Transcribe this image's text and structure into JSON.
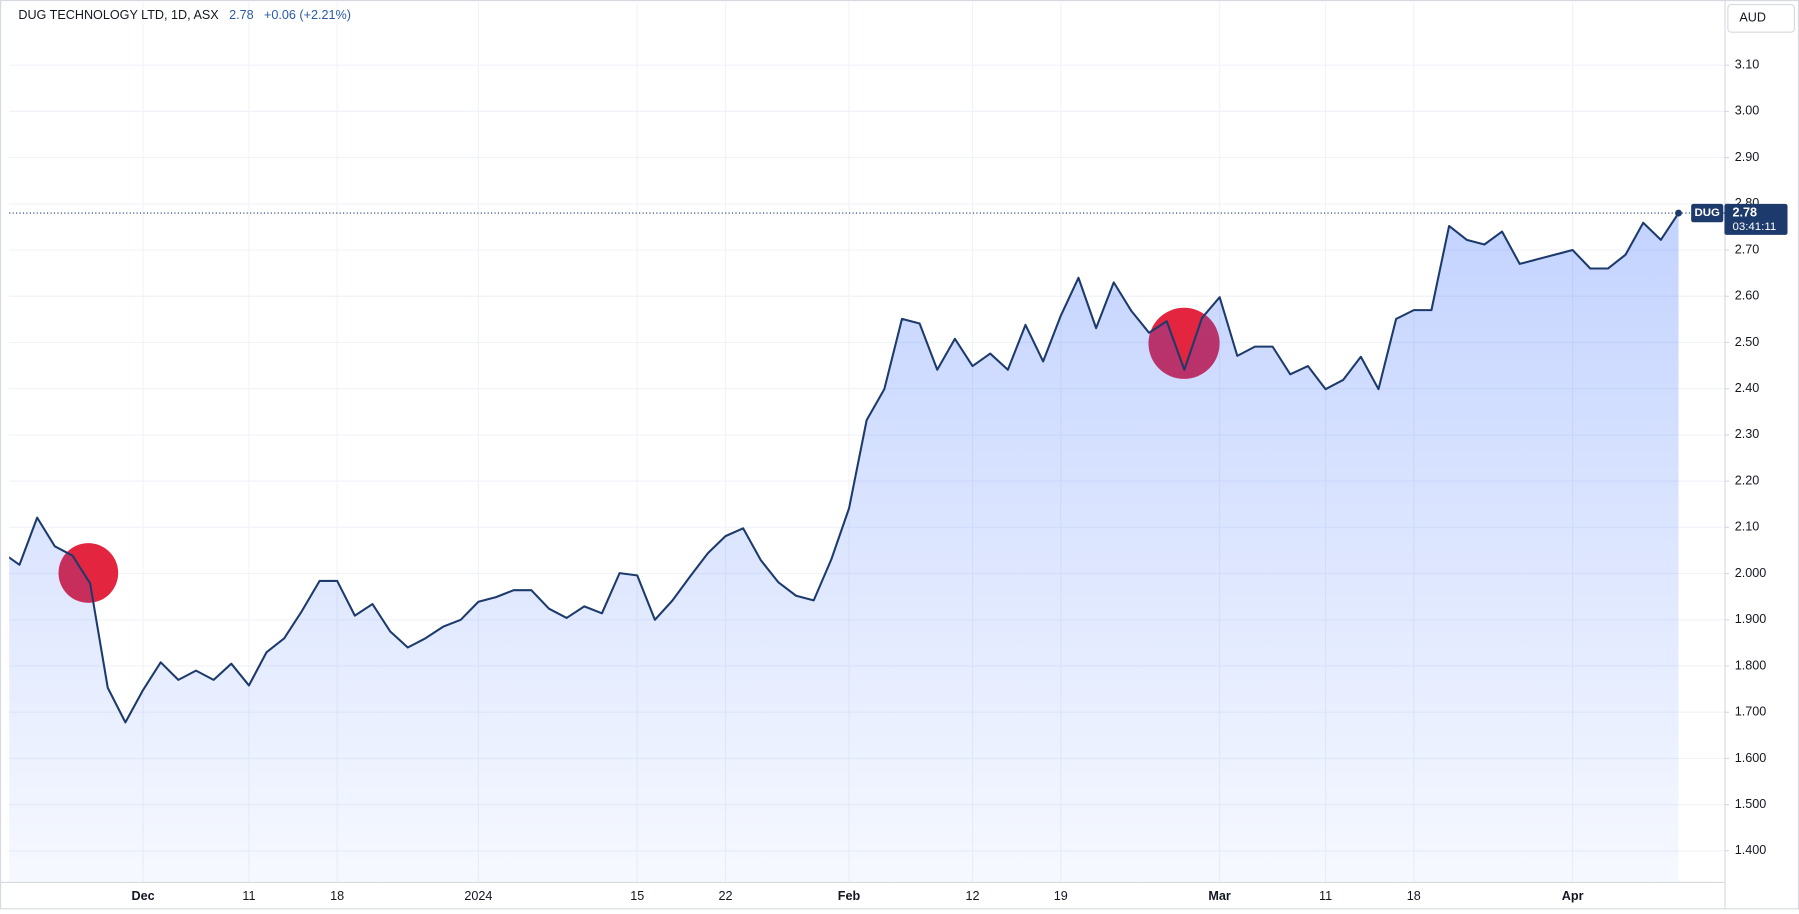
{
  "chart_data": {
    "type": "area",
    "title": "DUG TECHNOLOGY LTD, 1D, ASX",
    "change": "+0.06 (+2.21%)",
    "currency": "AUD",
    "symbol": "DUG",
    "last_value": 2.78,
    "countdown": "03:41:11",
    "grid": true,
    "categories": [
      null,
      null,
      null,
      null,
      null,
      null,
      null,
      null,
      "Dec",
      null,
      null,
      null,
      null,
      null,
      "11",
      null,
      null,
      null,
      null,
      "18",
      null,
      null,
      null,
      null,
      null,
      null,
      null,
      "2024",
      null,
      null,
      null,
      null,
      null,
      null,
      null,
      null,
      "15",
      null,
      null,
      null,
      null,
      "22",
      null,
      null,
      null,
      null,
      null,
      null,
      "Feb",
      null,
      null,
      null,
      null,
      null,
      null,
      "12",
      null,
      null,
      null,
      null,
      "19",
      null,
      null,
      null,
      null,
      null,
      null,
      null,
      null,
      "Mar",
      null,
      null,
      null,
      null,
      null,
      "11",
      null,
      null,
      null,
      null,
      "18",
      null,
      null,
      null,
      null,
      null,
      null,
      null,
      null,
      "Apr",
      null,
      null,
      null,
      null,
      null,
      null
    ],
    "series": [
      {
        "name": "DUG",
        "color": "#1c3a6b",
        "values": [
          2.046,
          2.019,
          2.121,
          2.059,
          2.039,
          1.979,
          1.753,
          1.678,
          1.748,
          1.808,
          1.77,
          1.79,
          1.77,
          1.805,
          1.758,
          1.83,
          1.86,
          1.919,
          1.984,
          1.984,
          1.909,
          1.934,
          1.875,
          1.84,
          1.86,
          1.885,
          1.9,
          1.939,
          1.949,
          1.964,
          1.964,
          1.924,
          1.904,
          1.929,
          1.914,
          2.001,
          1.996,
          1.9,
          1.942,
          1.994,
          2.044,
          2.081,
          2.098,
          2.029,
          1.981,
          1.952,
          1.942,
          2.031,
          2.141,
          2.332,
          2.399,
          2.551,
          2.541,
          2.441,
          2.508,
          2.449,
          2.476,
          2.441,
          2.538,
          2.459,
          2.558,
          2.64,
          2.531,
          2.63,
          2.568,
          2.521,
          2.546,
          2.441,
          2.553,
          2.598,
          2.471,
          2.491,
          2.491,
          2.431,
          2.449,
          2.399,
          2.419,
          2.469,
          2.399,
          2.551,
          2.57,
          2.57,
          2.752,
          2.722,
          2.712,
          2.74,
          2.67,
          2.68,
          2.69,
          2.7,
          2.66,
          2.66,
          2.69,
          2.759,
          2.722,
          2.78
        ]
      }
    ],
    "ylim": [
      1.333,
      3.236
    ],
    "yticks": [
      {
        "value": 1.4,
        "label": "1.400"
      },
      {
        "value": 1.5,
        "label": "1.500"
      },
      {
        "value": 1.6,
        "label": "1.600"
      },
      {
        "value": 1.7,
        "label": "1.700"
      },
      {
        "value": 1.8,
        "label": "1.800"
      },
      {
        "value": 1.9,
        "label": "1.900"
      },
      {
        "value": 2.0,
        "label": "2.000"
      },
      {
        "value": 2.1,
        "label": "2.10"
      },
      {
        "value": 2.2,
        "label": "2.20"
      },
      {
        "value": 2.3,
        "label": "2.30"
      },
      {
        "value": 2.4,
        "label": "2.40"
      },
      {
        "value": 2.5,
        "label": "2.50"
      },
      {
        "value": 2.6,
        "label": "2.60"
      },
      {
        "value": 2.7,
        "label": "2.70"
      },
      {
        "value": 2.8,
        "label": "2.80"
      },
      {
        "value": 2.9,
        "label": "2.90"
      },
      {
        "value": 3.0,
        "label": "3.00"
      },
      {
        "value": 3.1,
        "label": "3.10"
      }
    ]
  }
}
